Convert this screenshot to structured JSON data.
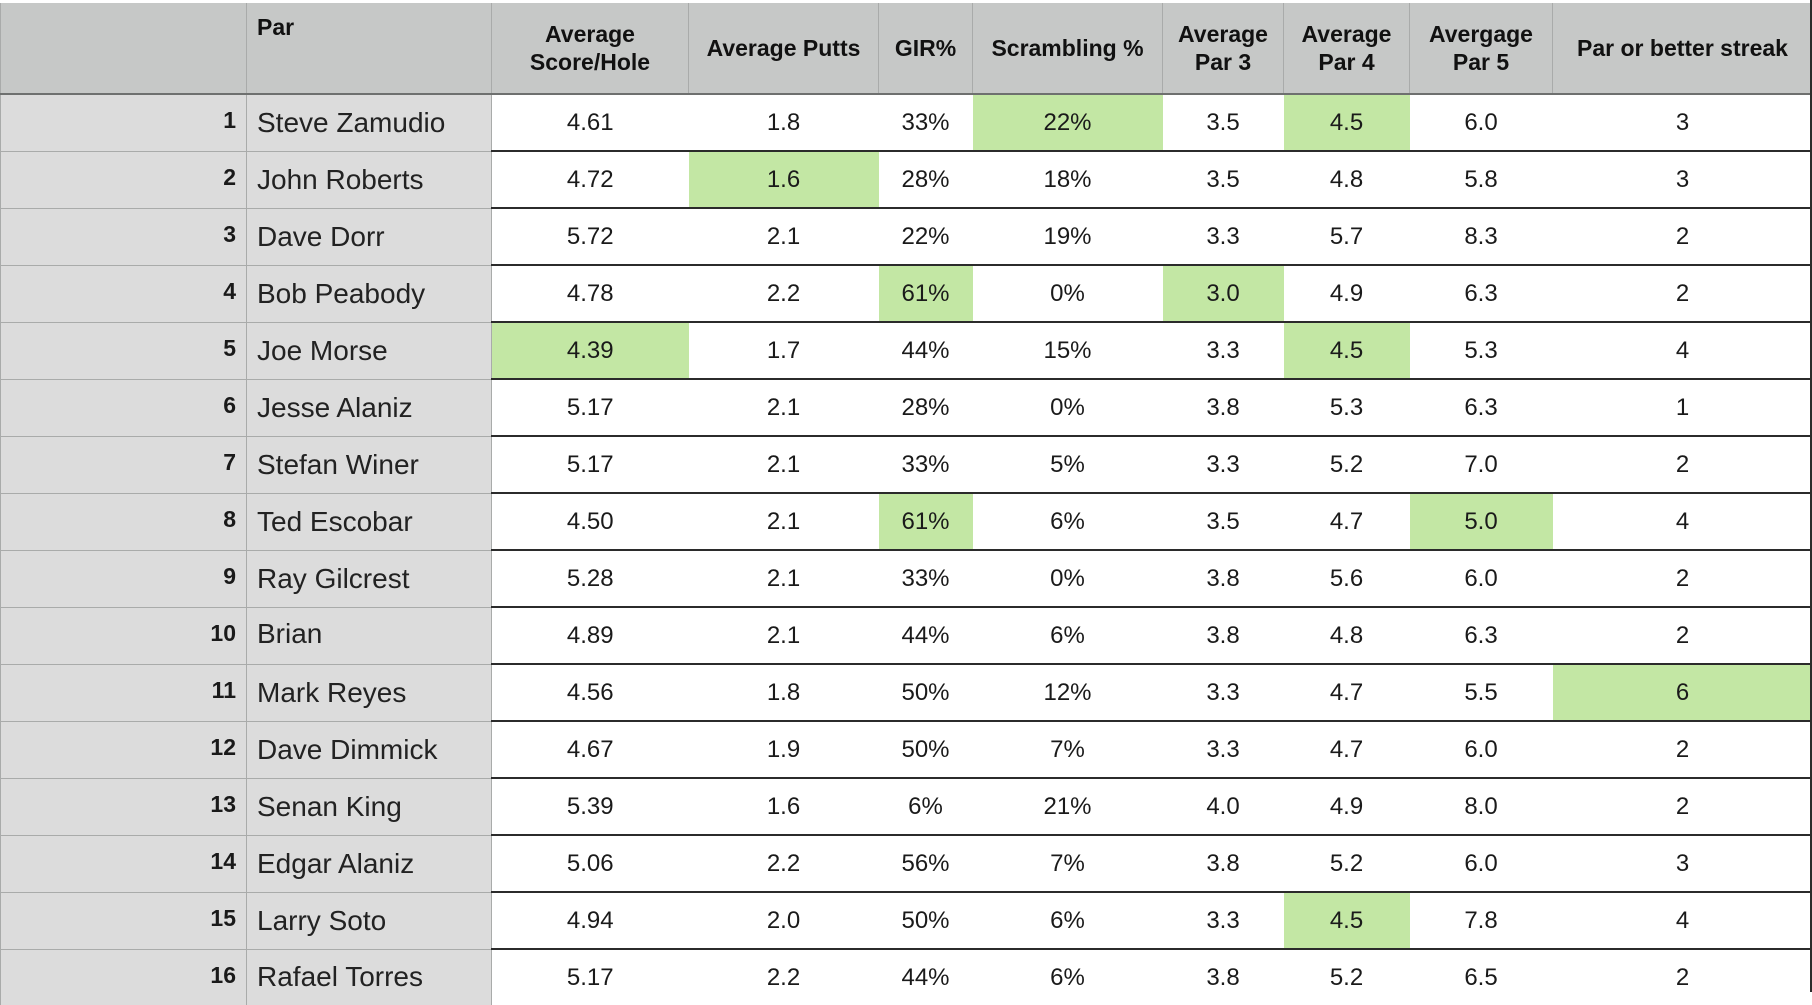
{
  "table": {
    "columns": {
      "name": "Par",
      "avg_score_hole": "Average Score/Hole",
      "avg_putts": "Average Putts",
      "gir": "GIR%",
      "scrambling": "Scrambling %",
      "avg_par3": "Average Par 3",
      "avg_par4": "Average Par 4",
      "avg_par5": "Avergage Par 5",
      "streak": "Par or better streak"
    },
    "highlight_color": "#c3e7a4",
    "rows": [
      {
        "num": "1",
        "name": "Steve Zamudio",
        "cells": [
          "4.61",
          "1.8",
          "33%",
          "22%",
          "3.5",
          "4.5",
          "6.0",
          "3"
        ],
        "highlight": [
          3,
          5
        ]
      },
      {
        "num": "2",
        "name": "John Roberts",
        "cells": [
          "4.72",
          "1.6",
          "28%",
          "18%",
          "3.5",
          "4.8",
          "5.8",
          "3"
        ],
        "highlight": [
          1
        ]
      },
      {
        "num": "3",
        "name": "Dave Dorr",
        "cells": [
          "5.72",
          "2.1",
          "22%",
          "19%",
          "3.3",
          "5.7",
          "8.3",
          "2"
        ],
        "highlight": []
      },
      {
        "num": "4",
        "name": "Bob Peabody",
        "cells": [
          "4.78",
          "2.2",
          "61%",
          "0%",
          "3.0",
          "4.9",
          "6.3",
          "2"
        ],
        "highlight": [
          2,
          4
        ]
      },
      {
        "num": "5",
        "name": "Joe Morse",
        "cells": [
          "4.39",
          "1.7",
          "44%",
          "15%",
          "3.3",
          "4.5",
          "5.3",
          "4"
        ],
        "highlight": [
          0,
          5
        ]
      },
      {
        "num": "6",
        "name": "Jesse Alaniz",
        "cells": [
          "5.17",
          "2.1",
          "28%",
          "0%",
          "3.8",
          "5.3",
          "6.3",
          "1"
        ],
        "highlight": []
      },
      {
        "num": "7",
        "name": "Stefan Winer",
        "cells": [
          "5.17",
          "2.1",
          "33%",
          "5%",
          "3.3",
          "5.2",
          "7.0",
          "2"
        ],
        "highlight": []
      },
      {
        "num": "8",
        "name": "Ted Escobar",
        "cells": [
          "4.50",
          "2.1",
          "61%",
          "6%",
          "3.5",
          "4.7",
          "5.0",
          "4"
        ],
        "highlight": [
          2,
          6
        ]
      },
      {
        "num": "9",
        "name": "Ray Gilcrest",
        "cells": [
          "5.28",
          "2.1",
          "33%",
          "0%",
          "3.8",
          "5.6",
          "6.0",
          "2"
        ],
        "highlight": []
      },
      {
        "num": "10",
        "name": "Brian",
        "cells": [
          "4.89",
          "2.1",
          "44%",
          "6%",
          "3.8",
          "4.8",
          "6.3",
          "2"
        ],
        "highlight": [],
        "clipped": true
      },
      {
        "num": "11",
        "name": "Mark Reyes",
        "cells": [
          "4.56",
          "1.8",
          "50%",
          "12%",
          "3.3",
          "4.7",
          "5.5",
          "6"
        ],
        "highlight": [
          7
        ]
      },
      {
        "num": "12",
        "name": "Dave Dimmick",
        "cells": [
          "4.67",
          "1.9",
          "50%",
          "7%",
          "3.3",
          "4.7",
          "6.0",
          "2"
        ],
        "highlight": []
      },
      {
        "num": "13",
        "name": "Senan King",
        "cells": [
          "5.39",
          "1.6",
          "6%",
          "21%",
          "4.0",
          "4.9",
          "8.0",
          "2"
        ],
        "highlight": []
      },
      {
        "num": "14",
        "name": "Edgar Alaniz",
        "cells": [
          "5.06",
          "2.2",
          "56%",
          "7%",
          "3.8",
          "5.2",
          "6.0",
          "3"
        ],
        "highlight": []
      },
      {
        "num": "15",
        "name": "Larry Soto",
        "cells": [
          "4.94",
          "2.0",
          "50%",
          "6%",
          "3.3",
          "4.5",
          "7.8",
          "4"
        ],
        "highlight": [
          5
        ]
      },
      {
        "num": "16",
        "name": "Rafael Torres",
        "cells": [
          "5.17",
          "2.2",
          "44%",
          "6%",
          "3.8",
          "5.2",
          "6.5",
          "2"
        ],
        "highlight": []
      }
    ]
  }
}
